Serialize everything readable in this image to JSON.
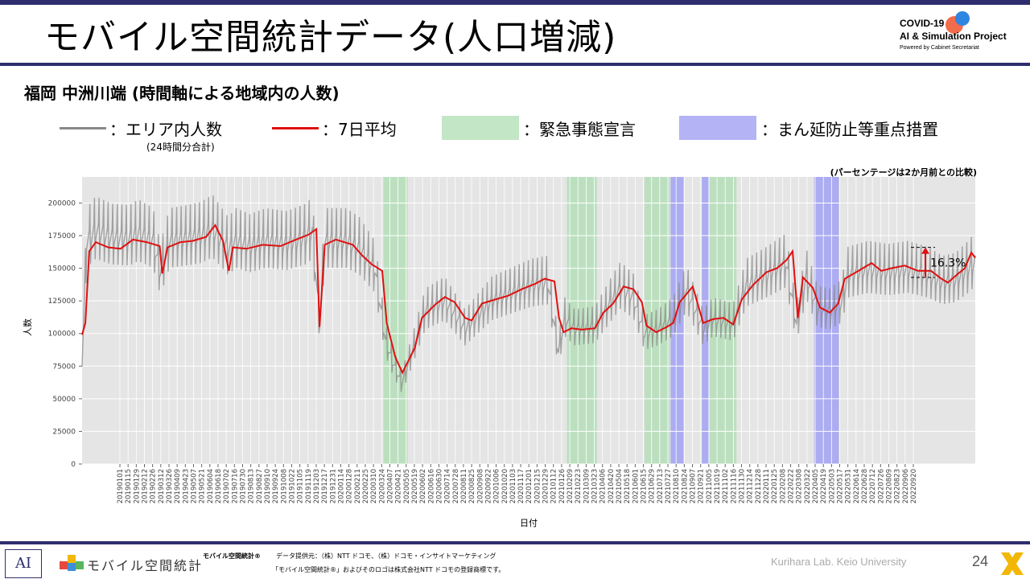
{
  "slide": {
    "title": "モバイル空間統計データ(人口増減)",
    "subtitle": "福岡 中洲川端 (時間軸による地域内の人数)",
    "page_number": "24"
  },
  "brand": {
    "line1": "COVID-19",
    "line2": "AI & Simulation Project",
    "line3": "Powered by Cabinet Secretariat"
  },
  "legend": {
    "gray_label": "：エリア内人数",
    "gray_note": "(24時間分合計)",
    "red_label": "：7日平均",
    "green_label": "：緊急事態宣言",
    "blue_label": "：まん延防止等重点措置",
    "colors": {
      "gray": "#888888",
      "red": "#e01010",
      "green": "#c3e6c7",
      "blue": "#b3b3f5"
    }
  },
  "footer": {
    "logo_text": "AI",
    "mobile_logo": "モバイル空間統計",
    "tm_text": "モバイル空間統計®",
    "source": "データ提供元：（株）NTT ドコモ、（株）ドコモ・インサイトマーケティング",
    "registered": "「モバイル空間統計®」およびそのロゴは株式会社NTT ドコモの登録商標です。",
    "lab": "Kurihara Lab. Keio University"
  },
  "chart_data": {
    "type": "line",
    "note": "(パーセンテージは2か月前との比較)",
    "xlabel": "日付",
    "ylabel": "人数",
    "ylim": [
      0,
      220000
    ],
    "yticks": [
      0,
      25000,
      50000,
      75000,
      100000,
      125000,
      150000,
      175000,
      200000
    ],
    "ytick_labels": [
      "0",
      "25000",
      "50000",
      "75000",
      "100000",
      "125000",
      "150000",
      "175000",
      "200000"
    ],
    "x_start": "2019-01-01",
    "x_end": "2022-10-01",
    "xtick_labels": [
      "20190101",
      "20190115",
      "20190129",
      "20190212",
      "20190226",
      "20190312",
      "20190326",
      "20190409",
      "20190423",
      "20190507",
      "20190521",
      "20190604",
      "20190618",
      "20190702",
      "20190716",
      "20190730",
      "20190813",
      "20190827",
      "20190910",
      "20190924",
      "20191008",
      "20191022",
      "20191105",
      "20191119",
      "20191203",
      "20191217",
      "20191231",
      "20200114",
      "20200128",
      "20200211",
      "20200225",
      "20200310",
      "20200324",
      "20200407",
      "20200421",
      "20200505",
      "20200519",
      "20200602",
      "20200616",
      "20200630",
      "20200714",
      "20200728",
      "20200811",
      "20200825",
      "20200908",
      "20200922",
      "20201006",
      "20201020",
      "20201103",
      "20201117",
      "20201201",
      "20201215",
      "20201229",
      "20210112",
      "20210126",
      "20210209",
      "20210223",
      "20210309",
      "20210323",
      "20210406",
      "20210420",
      "20210504",
      "20210518",
      "20210601",
      "20210615",
      "20210629",
      "20210713",
      "20210727",
      "20210810",
      "20210824",
      "20210907",
      "20210921",
      "20211005",
      "20211019",
      "20211102",
      "20211116",
      "20211130",
      "20211214",
      "20211228",
      "20220111",
      "20220125",
      "20220208",
      "20220222",
      "20220308",
      "20220322",
      "20220405",
      "20220419",
      "20220503",
      "20220517",
      "20220531",
      "20220614",
      "20220628",
      "20220712",
      "20220726",
      "20220809",
      "20220823",
      "20220906",
      "20220920"
    ],
    "green_periods": [
      [
        "2020-04-07",
        "2020-05-14"
      ],
      [
        "2021-01-13",
        "2021-02-28"
      ],
      [
        "2021-05-12",
        "2021-06-20"
      ],
      [
        "2021-08-20",
        "2021-09-30"
      ]
    ],
    "blue_periods": [
      [
        "2021-06-21",
        "2021-07-11"
      ],
      [
        "2021-08-08",
        "2021-08-19"
      ],
      [
        "2022-01-27",
        "2022-03-06"
      ]
    ],
    "series": [
      {
        "name": "エリア内人数",
        "color": "#888888",
        "points": [
          [
            "2019-01-01",
            78000
          ],
          [
            "2019-01-08",
            172000
          ],
          [
            "2019-01-22",
            180000
          ],
          [
            "2019-02-15",
            175000
          ],
          [
            "2019-03-15",
            174000
          ],
          [
            "2019-03-28",
            178000
          ],
          [
            "2019-04-20",
            172000
          ],
          [
            "2019-05-01",
            148000
          ],
          [
            "2019-05-15",
            172000
          ],
          [
            "2019-06-10",
            174000
          ],
          [
            "2019-07-01",
            176000
          ],
          [
            "2019-07-20",
            181000
          ],
          [
            "2019-08-13",
            166000
          ],
          [
            "2019-08-25",
            172000
          ],
          [
            "2019-09-15",
            168000
          ],
          [
            "2019-10-10",
            172000
          ],
          [
            "2019-11-10",
            170000
          ],
          [
            "2019-12-10",
            175000
          ],
          [
            "2019-12-20",
            180000
          ],
          [
            "2019-12-31",
            108000
          ],
          [
            "2020-01-08",
            172000
          ],
          [
            "2020-02-10",
            172000
          ],
          [
            "2020-03-01",
            166000
          ],
          [
            "2020-03-25",
            150000
          ],
          [
            "2020-04-10",
            95000
          ],
          [
            "2020-04-20",
            80000
          ],
          [
            "2020-05-05",
            62000
          ],
          [
            "2020-05-20",
            85000
          ],
          [
            "2020-06-10",
            118000
          ],
          [
            "2020-07-10",
            126000
          ],
          [
            "2020-08-10",
            104000
          ],
          [
            "2020-08-25",
            112000
          ],
          [
            "2020-09-20",
            126000
          ],
          [
            "2020-10-20",
            132000
          ],
          [
            "2020-11-20",
            138000
          ],
          [
            "2020-12-15",
            140000
          ],
          [
            "2020-12-31",
            86000
          ],
          [
            "2021-01-10",
            112000
          ],
          [
            "2021-01-25",
            104000
          ],
          [
            "2021-02-25",
            106000
          ],
          [
            "2021-03-20",
            124000
          ],
          [
            "2021-04-05",
            136000
          ],
          [
            "2021-04-25",
            128000
          ],
          [
            "2021-05-12",
            100000
          ],
          [
            "2021-06-01",
            104000
          ],
          [
            "2021-06-25",
            112000
          ],
          [
            "2021-07-15",
            134000
          ],
          [
            "2021-08-10",
            104000
          ],
          [
            "2021-08-25",
            112000
          ],
          [
            "2021-09-25",
            108000
          ],
          [
            "2021-10-15",
            138000
          ],
          [
            "2021-11-15",
            146000
          ],
          [
            "2021-12-15",
            155000
          ],
          [
            "2021-12-31",
            107000
          ],
          [
            "2022-01-15",
            145000
          ],
          [
            "2022-02-01",
            120000
          ],
          [
            "2022-02-20",
            118000
          ],
          [
            "2022-03-10",
            124000
          ],
          [
            "2022-03-20",
            146000
          ],
          [
            "2022-04-20",
            150000
          ],
          [
            "2022-05-20",
            148000
          ],
          [
            "2022-06-20",
            150000
          ],
          [
            "2022-07-20",
            146000
          ],
          [
            "2022-08-12",
            140000
          ],
          [
            "2022-09-01",
            142000
          ],
          [
            "2022-09-20",
            150000
          ],
          [
            "2022-10-01",
            156000
          ]
        ]
      },
      {
        "name": "7日平均",
        "color": "#e01010",
        "points": [
          [
            "2019-01-01",
            99000
          ],
          [
            "2019-01-06",
            108000
          ],
          [
            "2019-01-12",
            163000
          ],
          [
            "2019-01-22",
            170000
          ],
          [
            "2019-02-10",
            166000
          ],
          [
            "2019-03-01",
            165000
          ],
          [
            "2019-03-20",
            172000
          ],
          [
            "2019-04-10",
            170000
          ],
          [
            "2019-04-30",
            167000
          ],
          [
            "2019-05-04",
            146000
          ],
          [
            "2019-05-12",
            166000
          ],
          [
            "2019-06-01",
            170000
          ],
          [
            "2019-06-20",
            171000
          ],
          [
            "2019-07-10",
            174000
          ],
          [
            "2019-07-24",
            183000
          ],
          [
            "2019-08-05",
            171000
          ],
          [
            "2019-08-14",
            148000
          ],
          [
            "2019-08-20",
            166000
          ],
          [
            "2019-09-10",
            165000
          ],
          [
            "2019-10-05",
            168000
          ],
          [
            "2019-11-01",
            167000
          ],
          [
            "2019-11-25",
            172000
          ],
          [
            "2019-12-15",
            176000
          ],
          [
            "2019-12-26",
            180000
          ],
          [
            "2019-12-31",
            105000
          ],
          [
            "2020-01-08",
            168000
          ],
          [
            "2020-01-25",
            172000
          ],
          [
            "2020-02-20",
            168000
          ],
          [
            "2020-03-05",
            160000
          ],
          [
            "2020-03-20",
            153000
          ],
          [
            "2020-04-05",
            148000
          ],
          [
            "2020-04-12",
            108000
          ],
          [
            "2020-04-25",
            82000
          ],
          [
            "2020-05-06",
            70000
          ],
          [
            "2020-05-12",
            76000
          ],
          [
            "2020-05-25",
            89000
          ],
          [
            "2020-06-05",
            112000
          ],
          [
            "2020-06-25",
            122000
          ],
          [
            "2020-07-10",
            128000
          ],
          [
            "2020-07-25",
            124000
          ],
          [
            "2020-08-10",
            112000
          ],
          [
            "2020-08-20",
            110000
          ],
          [
            "2020-09-05",
            123000
          ],
          [
            "2020-09-25",
            126000
          ],
          [
            "2020-10-15",
            129000
          ],
          [
            "2020-11-05",
            134000
          ],
          [
            "2020-11-25",
            138000
          ],
          [
            "2020-12-10",
            142000
          ],
          [
            "2020-12-25",
            140000
          ],
          [
            "2021-01-01",
            112000
          ],
          [
            "2021-01-08",
            101000
          ],
          [
            "2021-01-20",
            104000
          ],
          [
            "2021-02-05",
            103000
          ],
          [
            "2021-02-25",
            104000
          ],
          [
            "2021-03-10",
            116000
          ],
          [
            "2021-03-25",
            123000
          ],
          [
            "2021-04-10",
            136000
          ],
          [
            "2021-04-25",
            134000
          ],
          [
            "2021-05-08",
            124000
          ],
          [
            "2021-05-15",
            106000
          ],
          [
            "2021-05-30",
            101000
          ],
          [
            "2021-06-15",
            105000
          ],
          [
            "2021-06-25",
            108000
          ],
          [
            "2021-07-05",
            124000
          ],
          [
            "2021-07-15",
            130000
          ],
          [
            "2021-07-25",
            136000
          ],
          [
            "2021-08-02",
            122000
          ],
          [
            "2021-08-10",
            108000
          ],
          [
            "2021-08-25",
            111000
          ],
          [
            "2021-09-10",
            112000
          ],
          [
            "2021-09-25",
            107000
          ],
          [
            "2021-10-08",
            126000
          ],
          [
            "2021-10-25",
            137000
          ],
          [
            "2021-11-15",
            147000
          ],
          [
            "2021-12-01",
            150000
          ],
          [
            "2021-12-15",
            156000
          ],
          [
            "2021-12-25",
            163000
          ],
          [
            "2022-01-02",
            112000
          ],
          [
            "2022-01-10",
            143000
          ],
          [
            "2022-01-25",
            135000
          ],
          [
            "2022-02-05",
            120000
          ],
          [
            "2022-02-20",
            116000
          ],
          [
            "2022-03-05",
            123000
          ],
          [
            "2022-03-15",
            142000
          ],
          [
            "2022-04-05",
            148000
          ],
          [
            "2022-04-25",
            154000
          ],
          [
            "2022-05-10",
            148000
          ],
          [
            "2022-05-25",
            150000
          ],
          [
            "2022-06-15",
            152000
          ],
          [
            "2022-07-05",
            148000
          ],
          [
            "2022-07-25",
            148000
          ],
          [
            "2022-08-10",
            142000
          ],
          [
            "2022-08-20",
            139000
          ],
          [
            "2022-09-05",
            146000
          ],
          [
            "2022-09-15",
            150000
          ],
          [
            "2022-09-25",
            162000
          ],
          [
            "2022-10-01",
            158000
          ]
        ]
      }
    ],
    "annotation": {
      "label": "16.3%",
      "from": 143000,
      "to": 166000
    }
  }
}
